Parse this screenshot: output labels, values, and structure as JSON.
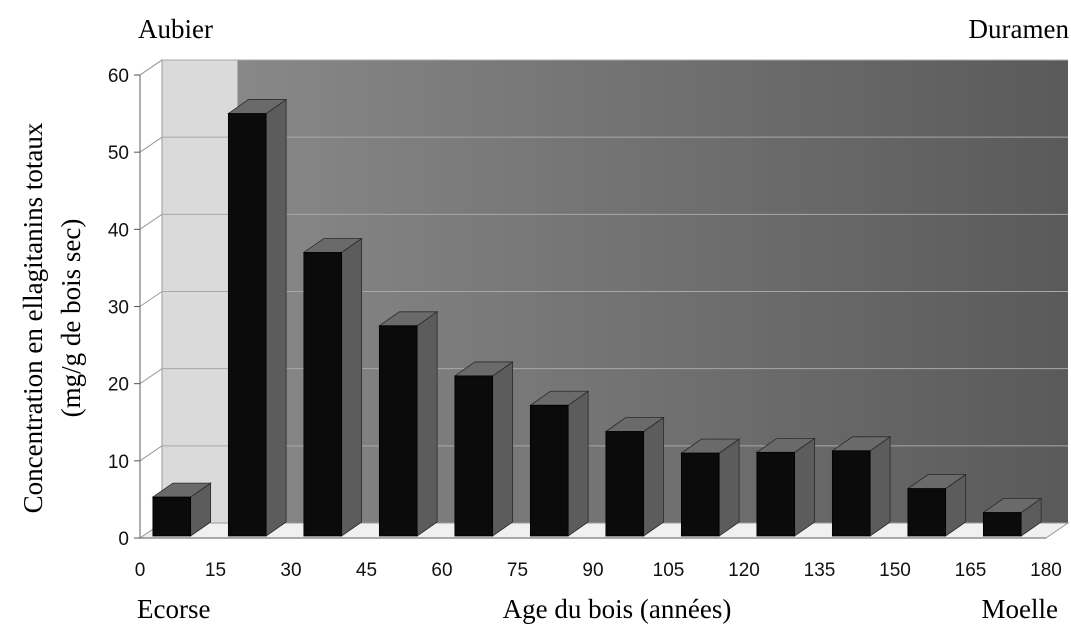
{
  "chart_data": {
    "type": "bar",
    "title": "",
    "xlabel": "Age du bois (années)",
    "ylabel_line1": "Concentration en ellagitanins totaux",
    "ylabel_line2": "(mg/g de bois sec)",
    "x_ticks": [
      "0",
      "15",
      "30",
      "45",
      "60",
      "75",
      "90",
      "105",
      "120",
      "135",
      "150",
      "165",
      "180"
    ],
    "y_ticks": [
      "0",
      "10",
      "20",
      "30",
      "40",
      "50",
      "60"
    ],
    "ylim": [
      0,
      60
    ],
    "xlim": [
      0,
      180
    ],
    "bins": [
      {
        "from": 0,
        "to": 15,
        "value": 5.3
      },
      {
        "from": 15,
        "to": 30,
        "value": 55
      },
      {
        "from": 30,
        "to": 45,
        "value": 37
      },
      {
        "from": 45,
        "to": 60,
        "value": 27.5
      },
      {
        "from": 60,
        "to": 75,
        "value": 21
      },
      {
        "from": 75,
        "to": 90,
        "value": 17.2
      },
      {
        "from": 90,
        "to": 105,
        "value": 13.8
      },
      {
        "from": 105,
        "to": 120,
        "value": 11
      },
      {
        "from": 120,
        "to": 135,
        "value": 11.1
      },
      {
        "from": 135,
        "to": 150,
        "value": 11.3
      },
      {
        "from": 150,
        "to": 165,
        "value": 6.4
      },
      {
        "from": 165,
        "to": 180,
        "value": 3.3
      }
    ],
    "annotations": {
      "top_left": "Aubier",
      "top_right": "Duramen",
      "bottom_left": "Ecorse",
      "bottom_right": "Moelle"
    },
    "grid": true,
    "shaded_region_x": [
      0,
      15
    ],
    "colors": {
      "bar_front": "#0b0b0b",
      "bar_side": "#5c5c5c",
      "bar_top": "#6a6a6a",
      "wall_light": "#8c8c8c",
      "wall_dark": "#5a5a5a",
      "bark_region": "#dadada",
      "floor": "#f0f0f0",
      "gridline": "#a8a8a8"
    }
  }
}
